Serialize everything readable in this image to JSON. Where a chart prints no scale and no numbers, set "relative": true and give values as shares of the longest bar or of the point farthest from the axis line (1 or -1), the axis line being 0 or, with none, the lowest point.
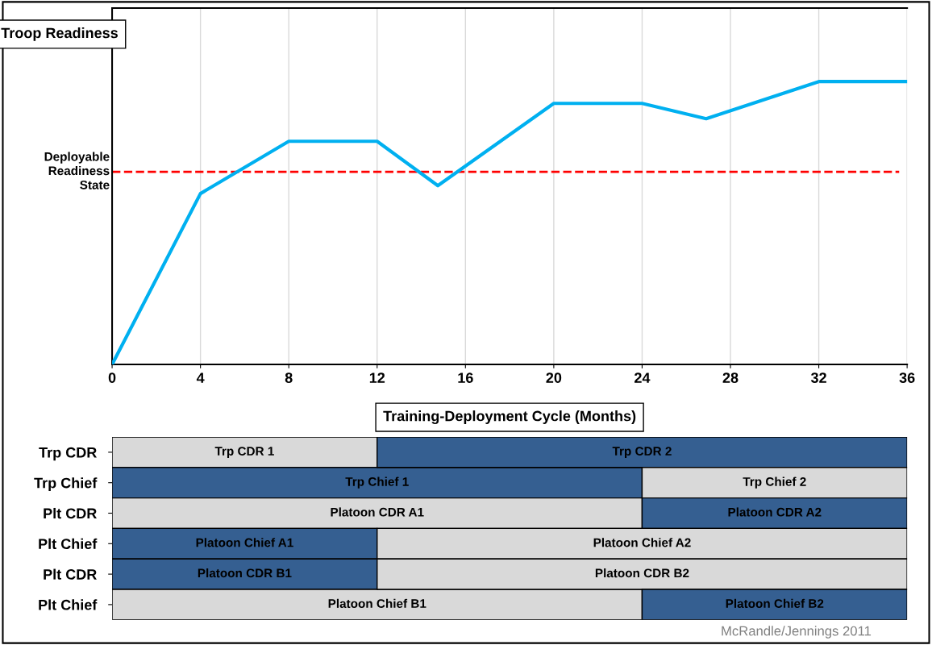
{
  "chart_data": [
    {
      "type": "line",
      "relative": true,
      "ylabel": "Troop Readiness",
      "xlabel": "Training-Deployment Cycle (Months)",
      "x": [
        0,
        4,
        8,
        12,
        14.75,
        20,
        24,
        26.9,
        32,
        36
      ],
      "series": [
        {
          "color": "#00b0f0",
          "values": [
            0,
            0.604,
            0.789,
            0.789,
            0.632,
            0.923,
            0.923,
            0.869,
            1,
            1
          ]
        }
      ],
      "xlim": [
        0,
        36
      ],
      "xticks": [
        0,
        4,
        8,
        12,
        16,
        20,
        24,
        28,
        32,
        36
      ],
      "grid": "x",
      "tick_labels": "x",
      "marker": "none",
      "line_style": "solid",
      "ref_lines": [
        {
          "axis": "y",
          "value": 0.681,
          "label": "Deployable Readiness State",
          "color": "#ff0000",
          "line_style": "dashed"
        }
      ]
    },
    {
      "type": "bar",
      "orientation": "horizontal",
      "stacked": true,
      "xlim": [
        0,
        36
      ],
      "tick_labels": "y",
      "categories": [
        "Trp CDR",
        "Trp Chief",
        "Plt CDR",
        "Plt Chief",
        "Plt CDR",
        "Plt Chief"
      ],
      "series": [
        {
          "values": [
            12,
            24,
            24,
            12,
            12,
            24
          ],
          "colors": [
            "#d9d9d9",
            "#355f91",
            "#d9d9d9",
            "#355f91",
            "#355f91",
            "#d9d9d9"
          ],
          "value_labels": [
            "Trp CDR 1",
            "Trp Chief 1",
            "Platoon CDR A1",
            "Platoon Chief A1",
            "Platoon CDR B1",
            "Platoon Chief B1"
          ]
        },
        {
          "values": [
            24,
            12,
            12,
            24,
            24,
            12
          ],
          "colors": [
            "#355f91",
            "#d9d9d9",
            "#355f91",
            "#d9d9d9",
            "#d9d9d9",
            "#355f91"
          ],
          "value_labels": [
            "Trp CDR 2",
            "Trp Chief 2",
            "Platoon CDR A2",
            "Platoon Chief A2",
            "Platoon CDR B2",
            "Platoon Chief B2"
          ]
        }
      ],
      "annotations": [
        "McRandle/Jennings 2011"
      ]
    }
  ]
}
